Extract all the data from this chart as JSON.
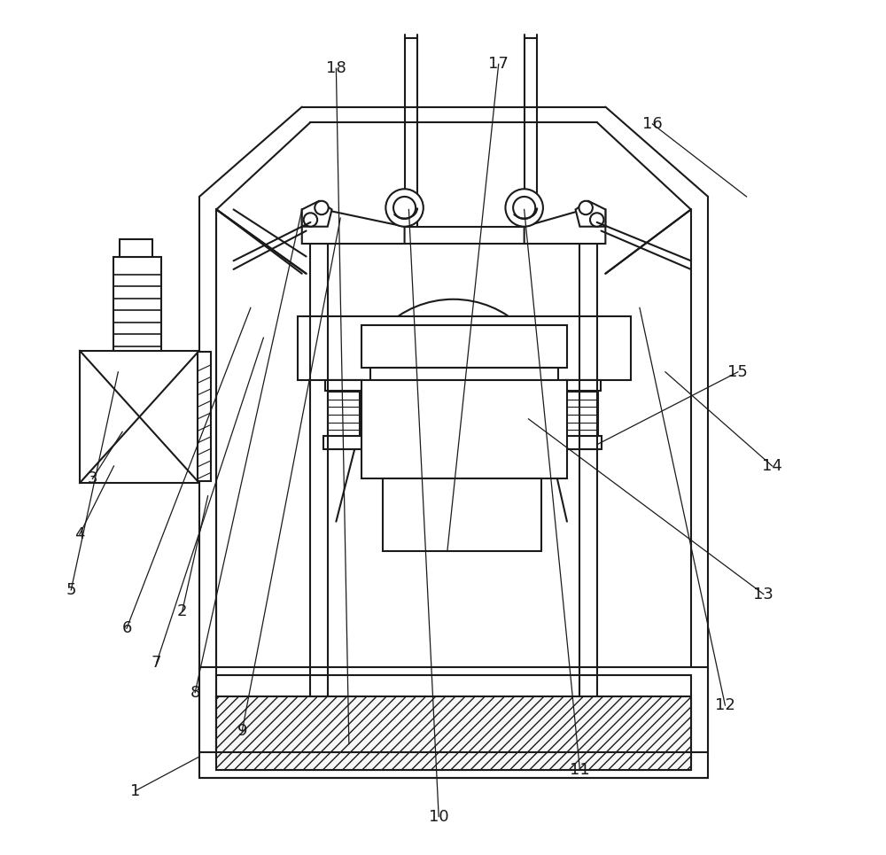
{
  "bg_color": "#ffffff",
  "line_color": "#1a1a1a",
  "lw": 1.5,
  "lw_thin": 0.8,
  "label_fontsize": 13,
  "labels": {
    "1": [
      0.14,
      0.075,
      0.215,
      0.115
    ],
    "2": [
      0.195,
      0.285,
      0.225,
      0.42
    ],
    "3": [
      0.09,
      0.44,
      0.125,
      0.495
    ],
    "4": [
      0.075,
      0.375,
      0.115,
      0.455
    ],
    "5": [
      0.065,
      0.31,
      0.12,
      0.565
    ],
    "6": [
      0.13,
      0.265,
      0.275,
      0.64
    ],
    "7": [
      0.165,
      0.225,
      0.29,
      0.605
    ],
    "8": [
      0.21,
      0.19,
      0.335,
      0.755
    ],
    "9": [
      0.265,
      0.145,
      0.38,
      0.745
    ],
    "10": [
      0.495,
      0.045,
      0.46,
      0.755
    ],
    "11": [
      0.66,
      0.1,
      0.595,
      0.755
    ],
    "12": [
      0.83,
      0.175,
      0.73,
      0.64
    ],
    "13": [
      0.875,
      0.305,
      0.6,
      0.51
    ],
    "14": [
      0.885,
      0.455,
      0.76,
      0.565
    ],
    "15": [
      0.845,
      0.565,
      0.68,
      0.48
    ],
    "16": [
      0.745,
      0.855,
      0.855,
      0.77
    ],
    "17": [
      0.565,
      0.925,
      0.505,
      0.355
    ],
    "18": [
      0.375,
      0.92,
      0.39,
      0.13
    ]
  }
}
